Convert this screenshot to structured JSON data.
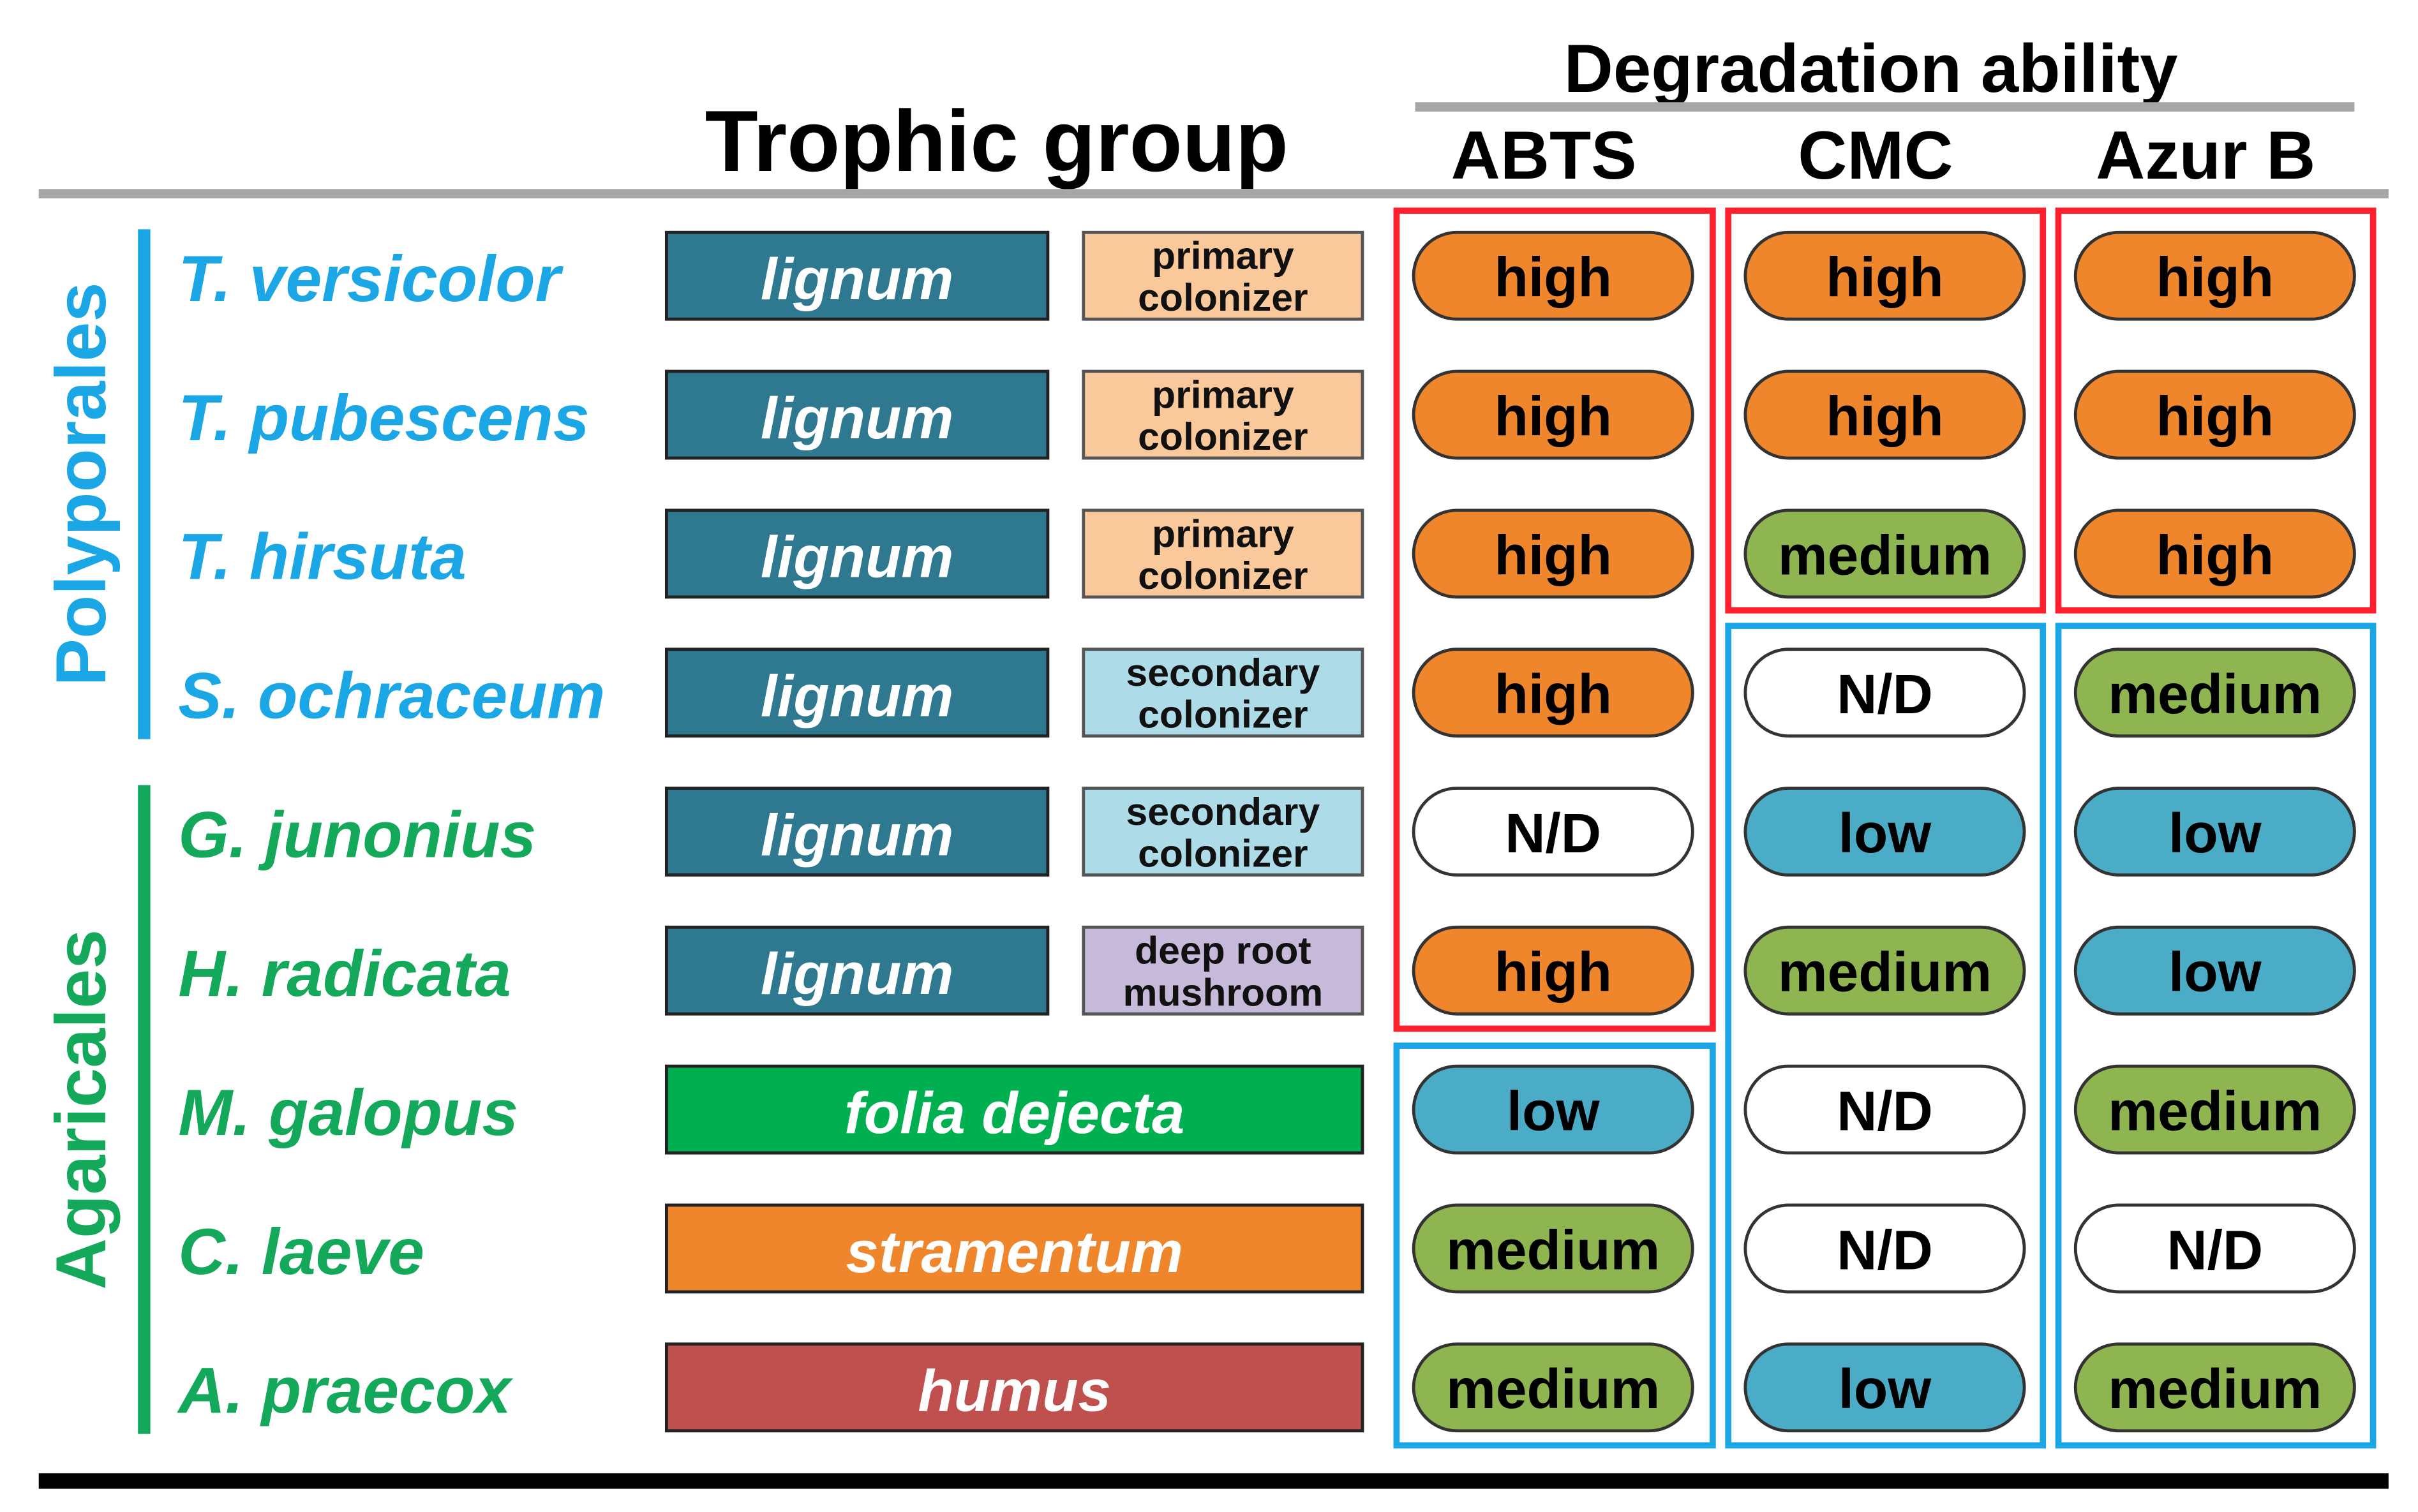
{
  "header": {
    "trophic": "Trophic group",
    "degradation": "Degradation ability",
    "columns": [
      "ABTS",
      "CMC",
      "Azur B"
    ]
  },
  "groups": [
    {
      "name": "Polyporales",
      "color": "#1ba6e6",
      "rows": [
        {
          "species": "T. versicolor",
          "substrate": {
            "text": "lignum",
            "color": "#2e7890"
          },
          "colonizer": {
            "lines": [
              "primary",
              "colonizer"
            ],
            "color": "#f9c89b"
          },
          "cells": [
            {
              "text": "high",
              "color": "#f0862c"
            },
            {
              "text": "high",
              "color": "#f0862c"
            },
            {
              "text": "high",
              "color": "#f0862c"
            }
          ]
        },
        {
          "species": "T. pubescens",
          "substrate": {
            "text": "lignum",
            "color": "#2e7890"
          },
          "colonizer": {
            "lines": [
              "primary",
              "colonizer"
            ],
            "color": "#f9c89b"
          },
          "cells": [
            {
              "text": "high",
              "color": "#f0862c"
            },
            {
              "text": "high",
              "color": "#f0862c"
            },
            {
              "text": "high",
              "color": "#f0862c"
            }
          ]
        },
        {
          "species": "T. hirsuta",
          "substrate": {
            "text": "lignum",
            "color": "#2e7890"
          },
          "colonizer": {
            "lines": [
              "primary",
              "colonizer"
            ],
            "color": "#f9c89b"
          },
          "cells": [
            {
              "text": "high",
              "color": "#f0862c"
            },
            {
              "text": "medium",
              "color": "#8fb550"
            },
            {
              "text": "high",
              "color": "#f0862c"
            }
          ]
        },
        {
          "species": "S. ochraceum",
          "substrate": {
            "text": "lignum",
            "color": "#2e7890"
          },
          "colonizer": {
            "lines": [
              "secondary",
              "colonizer"
            ],
            "color": "#aedbe8"
          },
          "cells": [
            {
              "text": "high",
              "color": "#f0862c"
            },
            {
              "text": "N/D",
              "color": "#ffffff"
            },
            {
              "text": "medium",
              "color": "#8fb550"
            }
          ]
        }
      ]
    },
    {
      "name": "Agaricales",
      "color": "#14a85a",
      "rows": [
        {
          "species": "G. junonius",
          "substrate": {
            "text": "lignum",
            "color": "#2e7890"
          },
          "colonizer": {
            "lines": [
              "secondary",
              "colonizer"
            ],
            "color": "#aedbe8"
          },
          "cells": [
            {
              "text": "N/D",
              "color": "#ffffff"
            },
            {
              "text": "low",
              "color": "#4aacc6"
            },
            {
              "text": "low",
              "color": "#4aacc6"
            }
          ]
        },
        {
          "species": "H. radicata",
          "substrate": {
            "text": "lignum",
            "color": "#2e7890"
          },
          "colonizer": {
            "lines": [
              "deep root",
              "mushroom"
            ],
            "color": "#c6b9d9"
          },
          "cells": [
            {
              "text": "high",
              "color": "#f0862c"
            },
            {
              "text": "medium",
              "color": "#8fb550"
            },
            {
              "text": "low",
              "color": "#4aacc6"
            }
          ]
        },
        {
          "species": "M. galopus",
          "substrate": {
            "text": "folia dejecta",
            "color": "#00b050"
          },
          "cells": [
            {
              "text": "low",
              "color": "#4aacc6"
            },
            {
              "text": "N/D",
              "color": "#ffffff"
            },
            {
              "text": "medium",
              "color": "#8fb550"
            }
          ]
        },
        {
          "species": "C. laeve",
          "substrate": {
            "text": "stramentum",
            "color": "#f0862c"
          },
          "cells": [
            {
              "text": "medium",
              "color": "#8fb550"
            },
            {
              "text": "N/D",
              "color": "#ffffff"
            },
            {
              "text": "N/D",
              "color": "#ffffff"
            }
          ]
        },
        {
          "species": "A. praecox",
          "substrate": {
            "text": "humus",
            "color": "#c0504d"
          },
          "cells": [
            {
              "text": "medium",
              "color": "#8fb550"
            },
            {
              "text": "low",
              "color": "#4aacc6"
            },
            {
              "text": "medium",
              "color": "#8fb550"
            }
          ]
        }
      ]
    }
  ]
}
